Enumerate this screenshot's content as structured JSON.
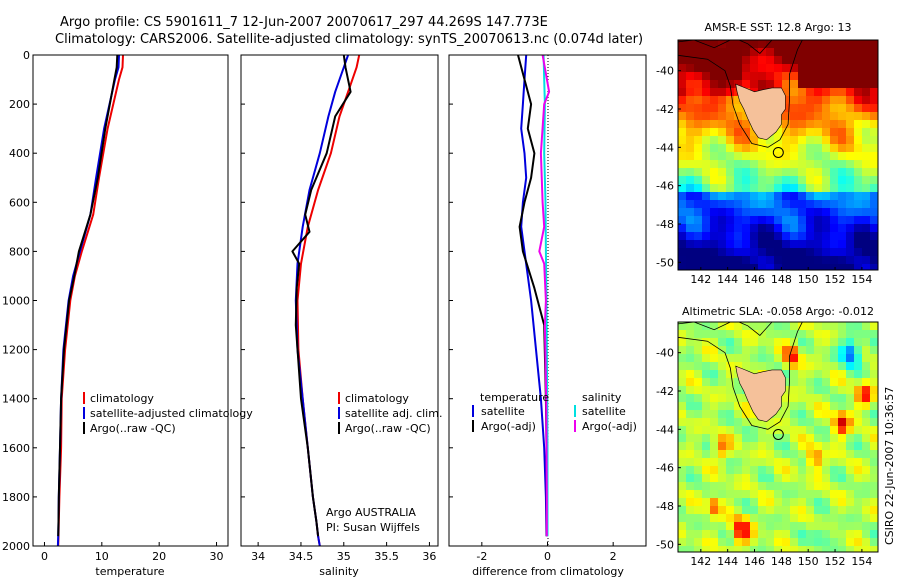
{
  "header": {
    "line1": "Argo profile: CS 5901611_7 12-Jun-2007 20070617_297 44.269S 147.773E",
    "line2": "Climatology: CARS2006. Satellite-adjusted climatology: synTS_20070613.nc (0.074d later)"
  },
  "side_label": "CSIRO 22-Jun-2007 10:36:57",
  "colors": {
    "climatology": "#ee0000",
    "satellite": "#0000dd",
    "argo": "#000000",
    "sat_salinity": "#00e0e0",
    "argo_salinity": "#ee00ee",
    "land": "#f5c19a"
  },
  "chart_data": [
    {
      "type": "line",
      "name": "temperature-profile",
      "xlabel": "temperature",
      "ylabel": "",
      "xlim": [
        -2,
        32
      ],
      "ylim": [
        2000,
        0
      ],
      "xticks": [
        "0",
        "10",
        "20",
        "30"
      ],
      "yticks": [
        "0",
        "200",
        "400",
        "600",
        "800",
        "1000",
        "1200",
        "1400",
        "1600",
        "1800",
        "2000"
      ],
      "legend": [
        "climatology",
        "satellite-adjusted climatology",
        "Argo(..raw -QC)"
      ],
      "series": [
        {
          "name": "climatology",
          "color": "#ee0000",
          "x": [
            13.7,
            13.6,
            13.0,
            11.0,
            9.5,
            8.5,
            6.5,
            5.3,
            4.5,
            3.6,
            3.0,
            2.9,
            2.6,
            2.5,
            2.45,
            2.4
          ],
          "y": [
            0,
            50,
            100,
            300,
            500,
            650,
            800,
            900,
            1000,
            1200,
            1400,
            1600,
            1800,
            1900,
            1960,
            2000
          ]
        },
        {
          "name": "satellite-adjusted climatology",
          "color": "#0000dd",
          "x": [
            13.0,
            12.9,
            12.3,
            10.4,
            9.0,
            8.0,
            6.2,
            5.0,
            4.2,
            3.3,
            2.9,
            2.7,
            2.5,
            2.45,
            2.4,
            2.35
          ],
          "y": [
            0,
            50,
            100,
            300,
            500,
            650,
            800,
            900,
            1000,
            1200,
            1400,
            1600,
            1800,
            1900,
            1960,
            2000
          ]
        },
        {
          "name": "Argo(..raw -QC)",
          "color": "#000000",
          "x": [
            12.7,
            12.6,
            12.2,
            10.6,
            9.3,
            8.0,
            6.0,
            5.2,
            4.3,
            3.4,
            2.9,
            2.7,
            2.5,
            2.45,
            2.4
          ],
          "y": [
            0,
            50,
            100,
            300,
            500,
            650,
            800,
            900,
            1000,
            1200,
            1400,
            1600,
            1800,
            1900,
            1960
          ]
        }
      ]
    },
    {
      "type": "line",
      "name": "salinity-profile",
      "xlabel": "salinity",
      "ylabel": "",
      "xlim": [
        33.8,
        36.1
      ],
      "ylim": [
        2000,
        0
      ],
      "xticks": [
        "34",
        "34.5",
        "35",
        "35.5",
        "36"
      ],
      "legend": [
        "climatology",
        "satellite adj. clim.",
        "Argo(..raw -QC)"
      ],
      "annotations": [
        "Argo AUSTRALIA",
        "PI: Susan Wijffels"
      ],
      "series": [
        {
          "name": "climatology",
          "color": "#ee0000",
          "x": [
            35.18,
            35.15,
            35.05,
            34.95,
            34.85,
            34.7,
            34.58,
            34.5,
            34.46,
            34.47,
            34.52,
            34.58,
            34.64,
            34.68,
            34.7,
            34.72
          ],
          "y": [
            0,
            50,
            150,
            250,
            400,
            550,
            700,
            850,
            1000,
            1200,
            1400,
            1600,
            1800,
            1900,
            1960,
            2000
          ]
        },
        {
          "name": "satellite adj. clim.",
          "color": "#0000dd",
          "x": [
            35.05,
            35.0,
            34.9,
            34.82,
            34.72,
            34.6,
            34.52,
            34.46,
            34.44,
            34.46,
            34.52,
            34.58,
            34.64,
            34.68,
            34.7,
            34.72
          ],
          "y": [
            0,
            50,
            150,
            250,
            400,
            550,
            700,
            850,
            1000,
            1200,
            1400,
            1600,
            1800,
            1900,
            1960,
            2000
          ]
        },
        {
          "name": "Argo(..raw -QC)",
          "color": "#000000",
          "x": [
            35.0,
            35.02,
            35.08,
            34.9,
            34.8,
            34.62,
            34.55,
            34.6,
            34.4,
            34.48,
            34.45,
            34.44,
            34.5,
            34.58,
            34.64,
            34.68,
            34.7
          ],
          "y": [
            0,
            50,
            150,
            250,
            400,
            550,
            650,
            720,
            800,
            850,
            950,
            1100,
            1400,
            1600,
            1800,
            1900,
            1960
          ]
        }
      ]
    },
    {
      "type": "line",
      "name": "difference-profile",
      "xlabel": "difference from climatology",
      "ylabel": "",
      "xlim": [
        -3,
        3
      ],
      "ylim": [
        2000,
        0
      ],
      "xticks": [
        "-2",
        "0",
        "2"
      ],
      "legend_left_title": "temperature",
      "legend_right_title": "salinity",
      "legend": [
        "satellite",
        "Argo(-adj)",
        "satellite",
        "Argo(-adj)"
      ],
      "series": [
        {
          "name": "temperature satellite",
          "color": "#0000dd",
          "x": [
            -0.65,
            -0.7,
            -0.75,
            -0.8,
            -0.7,
            -0.65,
            -0.75,
            -0.8,
            -0.7,
            -0.5,
            -0.35,
            -0.2,
            -0.1,
            -0.05,
            -0.03
          ],
          "y": [
            0,
            100,
            200,
            300,
            400,
            500,
            600,
            700,
            800,
            1000,
            1200,
            1400,
            1600,
            1800,
            1960
          ]
        },
        {
          "name": "temperature Argo(-adj)",
          "color": "#000000",
          "x": [
            -0.9,
            -0.7,
            -0.5,
            -0.6,
            -0.4,
            -0.5,
            -0.7,
            -0.85,
            -0.75,
            -0.4,
            -0.1,
            -0.05,
            -0.02,
            -0.02
          ],
          "y": [
            0,
            100,
            200,
            300,
            400,
            500,
            600,
            700,
            800,
            950,
            1100,
            1400,
            1700,
            1960
          ]
        },
        {
          "name": "salinity satellite",
          "color": "#00e0e0",
          "x": [
            -0.12,
            -0.1,
            -0.08,
            -0.1,
            -0.06,
            -0.05,
            -0.03,
            -0.02,
            -0.01,
            0.0,
            0.0,
            0.0
          ],
          "y": [
            0,
            100,
            200,
            400,
            600,
            800,
            1000,
            1200,
            1400,
            1600,
            1800,
            1960
          ]
        },
        {
          "name": "salinity Argo(-adj)",
          "color": "#ee00ee",
          "x": [
            -0.15,
            0.05,
            -0.1,
            -0.2,
            -0.15,
            -0.1,
            -0.25,
            -0.1,
            -0.05,
            -0.08,
            -0.04,
            -0.03,
            -0.02,
            -0.02
          ],
          "y": [
            0,
            150,
            200,
            400,
            600,
            700,
            800,
            850,
            1000,
            1100,
            1400,
            1600,
            1800,
            1960
          ]
        }
      ]
    },
    {
      "type": "heatmap",
      "name": "sst-map",
      "title": "AMSR-E SST: 12.8 Argo: 13",
      "xlim": [
        140.3,
        155.2
      ],
      "ylim": [
        -50.4,
        -38.4
      ],
      "xticks": [
        "142",
        "144",
        "146",
        "148",
        "150",
        "152",
        "154"
      ],
      "yticks": [
        "-40",
        "-42",
        "-44",
        "-46",
        "-48",
        "-50"
      ],
      "marker": {
        "lon": 147.773,
        "lat": -44.269
      }
    },
    {
      "type": "heatmap",
      "name": "sla-map",
      "title": "Altimetric SLA: -0.058 Argo: -0.012",
      "xlim": [
        140.3,
        155.2
      ],
      "ylim": [
        -50.4,
        -38.4
      ],
      "xticks": [
        "142",
        "144",
        "146",
        "148",
        "150",
        "152",
        "154"
      ],
      "yticks": [
        "-40",
        "-42",
        "-44",
        "-46",
        "-48",
        "-50"
      ],
      "marker": {
        "lon": 147.773,
        "lat": -44.269
      }
    }
  ]
}
